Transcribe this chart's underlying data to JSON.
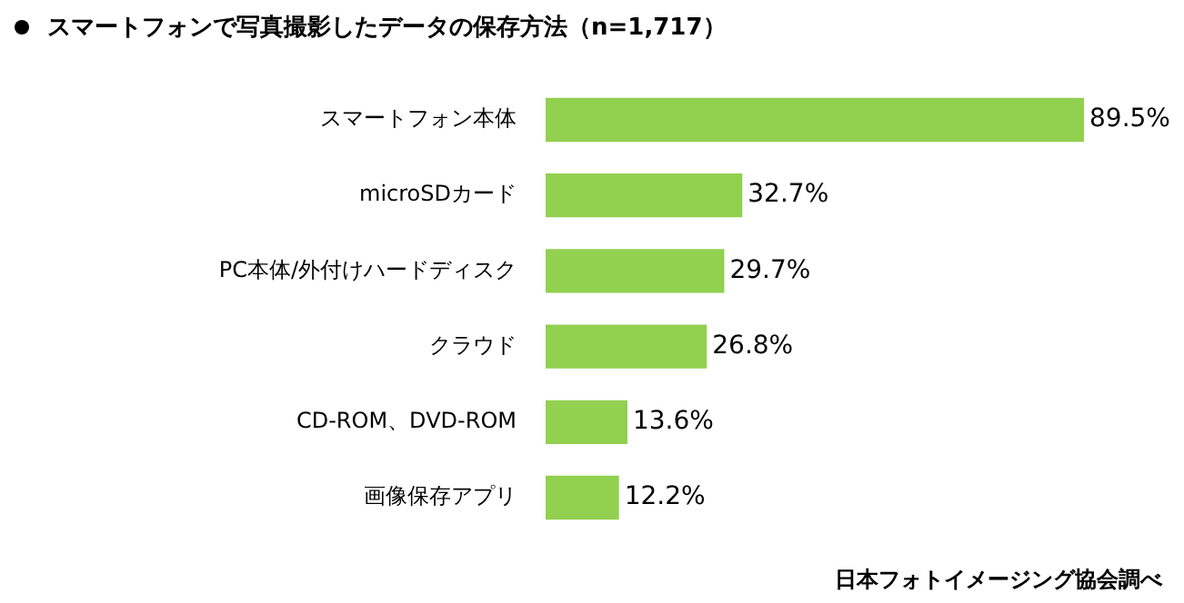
{
  "chart_data": {
    "type": "bar",
    "orientation": "horizontal",
    "title": "スマートフォンで写真撮影したデータの保存方法（n=1,717）",
    "categories": [
      "スマートフォン本体",
      "microSDカード",
      "PC本体/外付けハードディスク",
      "クラウド",
      "CD-ROM、DVD-ROM",
      "画像保存アプリ"
    ],
    "values": [
      89.5,
      32.7,
      29.7,
      26.8,
      13.6,
      12.2
    ],
    "value_labels": [
      "89.5%",
      "32.7%",
      "29.7%",
      "26.8%",
      "13.6%",
      "12.2%"
    ],
    "color": "#92d050",
    "annotations": [
      "日本フォトイメージング協会調べ"
    ]
  }
}
